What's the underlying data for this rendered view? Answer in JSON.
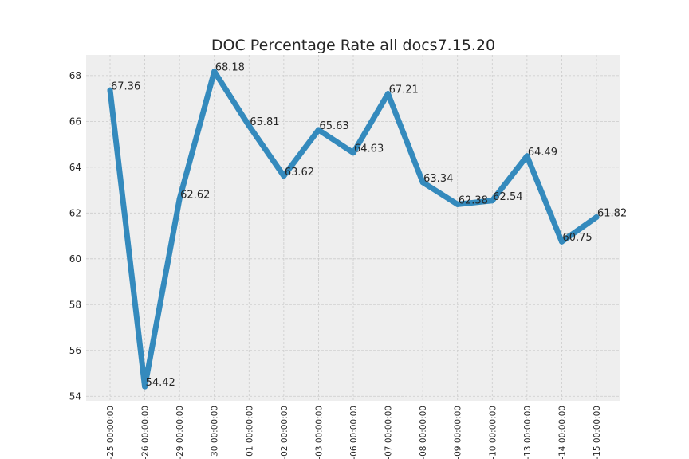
{
  "chart_data": {
    "type": "line",
    "title": "DOC Percentage Rate all docs7.15.20",
    "xlabel": "",
    "ylabel": "",
    "categories": [
      "-25 00:00:00",
      "-26 00:00:00",
      "-29 00:00:00",
      "-30 00:00:00",
      "-01 00:00:00",
      "-02 00:00:00",
      "-03 00:00:00",
      "-06 00:00:00",
      "-07 00:00:00",
      "-08 00:00:00",
      "-09 00:00:00",
      "-10 00:00:00",
      "-13 00:00:00",
      "-14 00:00:00",
      "-15 00:00:00"
    ],
    "values": [
      67.36,
      54.42,
      62.62,
      68.18,
      65.81,
      63.62,
      65.63,
      64.63,
      67.21,
      63.34,
      62.38,
      62.54,
      64.49,
      60.75,
      61.82
    ],
    "data_labels": [
      "67.36",
      "54.42",
      "62.62",
      "68.18",
      "65.81",
      "63.62",
      "65.63",
      "64.63",
      "67.21",
      "63.34",
      "62.38",
      "62.54",
      "64.49",
      "60.75",
      "61.82"
    ],
    "yticks": [
      54,
      56,
      58,
      60,
      62,
      64,
      66,
      68
    ],
    "ylim": [
      53.8,
      68.9
    ],
    "grid": true,
    "line_color": "#348abd",
    "background_color": "#eeeeee"
  }
}
